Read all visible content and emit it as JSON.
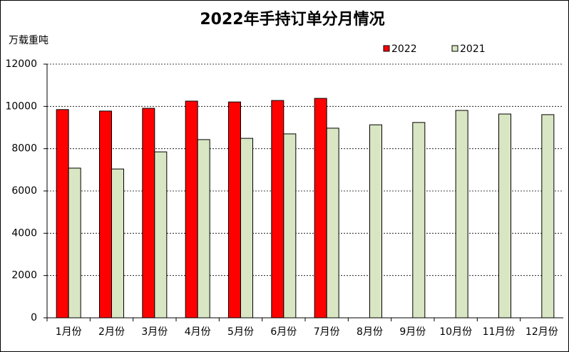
{
  "chart_data": {
    "type": "bar",
    "title": "2022年手持订单分月情况",
    "y_label": "万载重吨",
    "categories": [
      "1月份",
      "2月份",
      "3月份",
      "4月份",
      "5月份",
      "6月份",
      "7月份",
      "8月份",
      "9月份",
      "10月份",
      "11月份",
      "12月份"
    ],
    "series": [
      {
        "name": "2022",
        "color": "#ff0000",
        "values": [
          9850,
          9780,
          9910,
          10250,
          10210,
          10280,
          10380,
          null,
          null,
          null,
          null,
          null
        ]
      },
      {
        "name": "2021",
        "color": "#d9e6c3",
        "values": [
          7080,
          7040,
          7850,
          8430,
          8490,
          8700,
          8970,
          9130,
          9240,
          9810,
          9640,
          9610
        ]
      }
    ],
    "ylim": [
      0,
      12000
    ],
    "yticks": [
      0,
      2000,
      4000,
      6000,
      8000,
      10000,
      12000
    ],
    "grid": true
  }
}
